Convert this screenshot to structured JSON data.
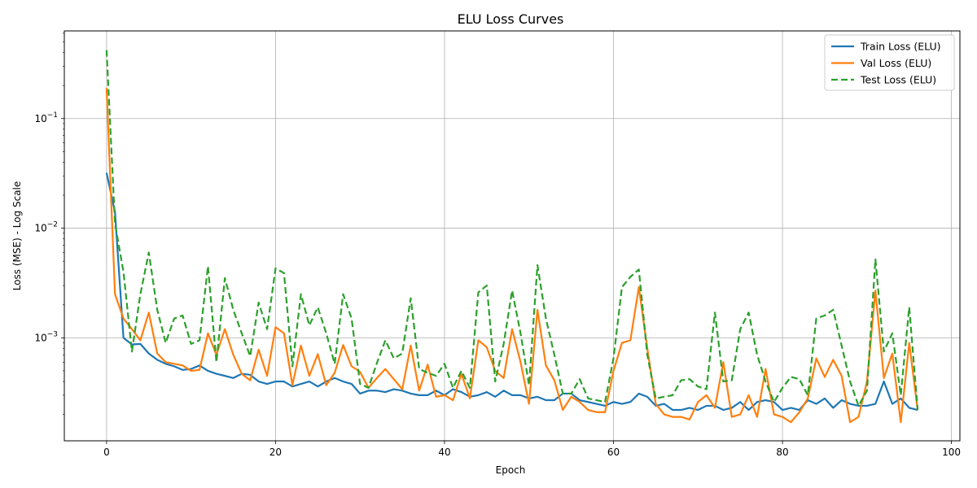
{
  "chart_data": {
    "type": "line",
    "title": "ELU Loss Curves",
    "xlabel": "Epoch",
    "ylabel": "Loss (MSE) - Log Scale",
    "xlim": [
      -5,
      101
    ],
    "ylim": [
      0.000115,
      0.63
    ],
    "yscale": "log",
    "grid": true,
    "legend_position": "top-right",
    "x_ticks": [
      0,
      20,
      40,
      60,
      80,
      100
    ],
    "x_tick_labels": [
      "0",
      "20",
      "40",
      "60",
      "80",
      "100"
    ],
    "y_ticks": [
      0.001,
      0.01,
      0.1
    ],
    "y_tick_labels": [
      {
        "base": "10",
        "exp": "−3"
      },
      {
        "base": "10",
        "exp": "−2"
      },
      {
        "base": "10",
        "exp": "−1"
      }
    ],
    "series": [
      {
        "name": "Train Loss (ELU)",
        "color": "#1f77b4",
        "dash": "solid",
        "values": [
          0.032,
          0.014,
          0.001,
          0.00087,
          0.00088,
          0.00072,
          0.00063,
          0.00058,
          0.00055,
          0.00051,
          0.00052,
          0.00056,
          0.0005,
          0.00047,
          0.00045,
          0.00043,
          0.00047,
          0.00046,
          0.0004,
          0.00038,
          0.0004,
          0.0004,
          0.00036,
          0.00038,
          0.0004,
          0.00036,
          0.0004,
          0.00043,
          0.0004,
          0.00038,
          0.00031,
          0.00033,
          0.00033,
          0.00032,
          0.00034,
          0.00033,
          0.00031,
          0.0003,
          0.0003,
          0.00033,
          0.0003,
          0.00034,
          0.00032,
          0.00029,
          0.0003,
          0.00032,
          0.00029,
          0.00033,
          0.0003,
          0.0003,
          0.00028,
          0.00029,
          0.00027,
          0.00027,
          0.00031,
          0.00031,
          0.00027,
          0.00026,
          0.00025,
          0.00024,
          0.00026,
          0.00025,
          0.00026,
          0.00031,
          0.00029,
          0.00024,
          0.00025,
          0.00022,
          0.00022,
          0.00023,
          0.00022,
          0.00024,
          0.00024,
          0.00022,
          0.00023,
          0.00026,
          0.00022,
          0.00026,
          0.00027,
          0.00026,
          0.00022,
          0.00023,
          0.00022,
          0.00027,
          0.00025,
          0.00028,
          0.00023,
          0.00027,
          0.00025,
          0.00024,
          0.00024,
          0.00025,
          0.0004,
          0.00025,
          0.00028,
          0.00023,
          0.00022
        ]
      },
      {
        "name": "Val Loss (ELU)",
        "color": "#ff7f0e",
        "dash": "solid",
        "values": [
          0.19,
          0.0025,
          0.0015,
          0.0012,
          0.00095,
          0.0017,
          0.00072,
          0.0006,
          0.00058,
          0.00056,
          0.0005,
          0.00051,
          0.0011,
          0.0007,
          0.0012,
          0.0007,
          0.00047,
          0.00041,
          0.00078,
          0.00045,
          0.00125,
          0.0011,
          0.00037,
          0.00085,
          0.00045,
          0.00071,
          0.00037,
          0.00048,
          0.00086,
          0.00055,
          0.00049,
          0.00035,
          0.00043,
          0.00052,
          0.00042,
          0.00034,
          0.00085,
          0.00033,
          0.00057,
          0.00029,
          0.0003,
          0.00027,
          0.00047,
          0.00028,
          0.00095,
          0.00082,
          0.0005,
          0.00043,
          0.0012,
          0.0006,
          0.00025,
          0.0018,
          0.00056,
          0.00041,
          0.00022,
          0.00029,
          0.00026,
          0.00022,
          0.00021,
          0.00021,
          0.0005,
          0.0009,
          0.00095,
          0.0029,
          0.0008,
          0.00025,
          0.0002,
          0.00019,
          0.00019,
          0.00018,
          0.00026,
          0.0003,
          0.00023,
          0.0006,
          0.00019,
          0.0002,
          0.0003,
          0.00019,
          0.00052,
          0.0002,
          0.00019,
          0.00017,
          0.00021,
          0.00028,
          0.00065,
          0.00044,
          0.00063,
          0.00045,
          0.00017,
          0.00019,
          0.0004,
          0.0027,
          0.00043,
          0.00072,
          0.00017,
          0.0009,
          0.00022
        ]
      },
      {
        "name": "Test Loss (ELU)",
        "color": "#2ca02c",
        "dash": "dashed",
        "values": [
          0.42,
          0.011,
          0.004,
          0.00075,
          0.0025,
          0.006,
          0.0018,
          0.0009,
          0.0015,
          0.0016,
          0.00088,
          0.00095,
          0.0045,
          0.0006,
          0.0035,
          0.0018,
          0.0011,
          0.00068,
          0.0021,
          0.0012,
          0.0043,
          0.0039,
          0.00055,
          0.0025,
          0.0013,
          0.0019,
          0.0011,
          0.00058,
          0.0025,
          0.0015,
          0.00038,
          0.00035,
          0.00059,
          0.00095,
          0.00065,
          0.00072,
          0.0023,
          0.00052,
          0.00048,
          0.00045,
          0.00058,
          0.00035,
          0.0005,
          0.00035,
          0.0026,
          0.003,
          0.0004,
          0.00088,
          0.0027,
          0.0011,
          0.00037,
          0.0046,
          0.0015,
          0.0007,
          0.00031,
          0.00031,
          0.00042,
          0.00028,
          0.00027,
          0.00026,
          0.00065,
          0.0029,
          0.0036,
          0.0042,
          0.0007,
          0.00028,
          0.00029,
          0.0003,
          0.00041,
          0.00042,
          0.00036,
          0.00034,
          0.0017,
          0.0004,
          0.00041,
          0.0012,
          0.0017,
          0.0007,
          0.0004,
          0.00026,
          0.00035,
          0.00044,
          0.00042,
          0.0003,
          0.0015,
          0.0016,
          0.0018,
          0.00085,
          0.0004,
          0.00024,
          0.00033,
          0.0052,
          0.00075,
          0.0011,
          0.0003,
          0.0019,
          0.00022
        ]
      }
    ]
  }
}
